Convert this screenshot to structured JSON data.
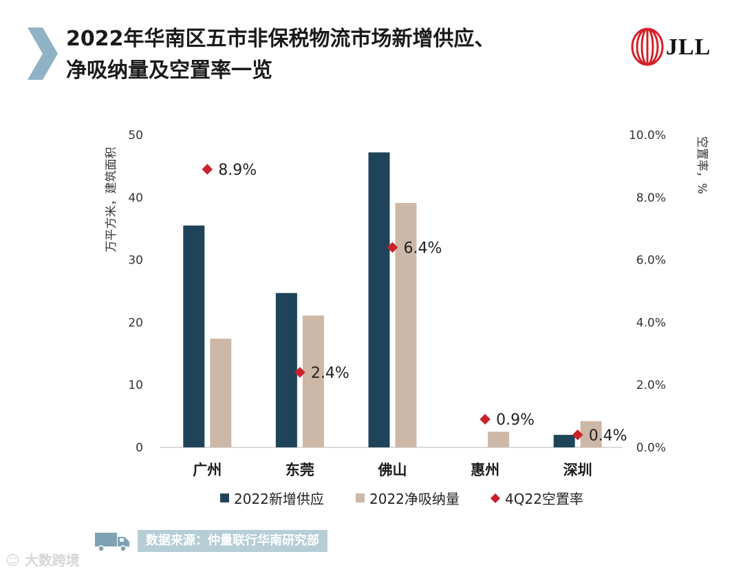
{
  "header": {
    "title_line1": "2022年华南区五市非保税物流市场新增供应、",
    "title_line2": "净吸纳量及空置率一览",
    "logo_text": "JLL"
  },
  "footer": {
    "source": "数据来源：仲量联行华南研究部",
    "watermark": "大数跨境"
  },
  "colors": {
    "supply": "#1f4459",
    "absorption": "#cdb8a8",
    "vacancy": "#c9222a",
    "accent": "#8fb3c4"
  },
  "chart_data": {
    "type": "bar",
    "categories": [
      "广州",
      "东莞",
      "佛山",
      "惠州",
      "深圳"
    ],
    "series": [
      {
        "name": "2022新增供应",
        "values": [
          35.5,
          24.7,
          47.2,
          0,
          2.0
        ]
      },
      {
        "name": "2022净吸纳量",
        "values": [
          17.4,
          21.1,
          39.1,
          2.5,
          4.2
        ]
      }
    ],
    "vacancy": {
      "name": "4Q22空置率",
      "values": [
        8.9,
        2.4,
        6.4,
        0.9,
        0.4
      ],
      "labels": [
        "8.9%",
        "2.4%",
        "6.4%",
        "0.9%",
        "0.4%"
      ]
    },
    "ylabel": "万平方米，建筑面积",
    "y2label": "空置率，%",
    "ylim": [
      0,
      50
    ],
    "y2lim": [
      0,
      10
    ],
    "yticks": [
      "0",
      "10",
      "20",
      "30",
      "40",
      "50"
    ],
    "y2ticks": [
      "0.0%",
      "2.0%",
      "4.0%",
      "6.0%",
      "8.0%",
      "10.0%"
    ],
    "legend": [
      "2022新增供应",
      "2022净吸纳量",
      "4Q22空置率"
    ]
  }
}
